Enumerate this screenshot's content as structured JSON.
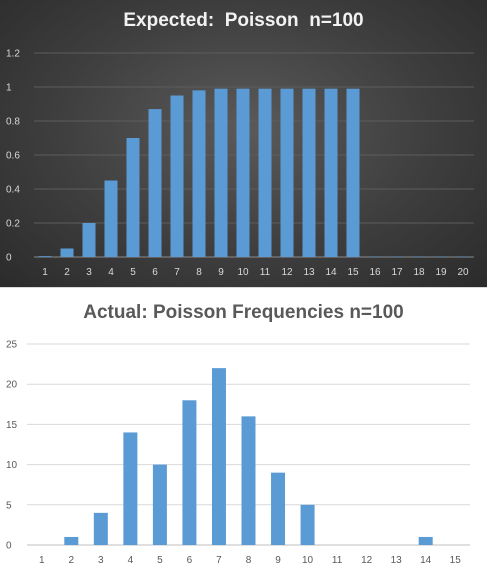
{
  "chart_data": [
    {
      "type": "bar",
      "title": "Expected:  Poisson  n=100",
      "categories": [
        "1",
        "2",
        "3",
        "4",
        "5",
        "6",
        "7",
        "8",
        "9",
        "10",
        "11",
        "12",
        "13",
        "14",
        "15",
        "16",
        "17",
        "18",
        "19",
        "20"
      ],
      "values": [
        0.005,
        0.05,
        0.2,
        0.45,
        0.7,
        0.87,
        0.95,
        0.98,
        0.99,
        0.99,
        0.99,
        0.99,
        0.99,
        0.99,
        0.99,
        0.003,
        0.003,
        0.003,
        0.003,
        0.003
      ],
      "ylim": [
        0,
        1.2
      ],
      "yticks": [
        "0",
        "0.2",
        "0.4",
        "0.6",
        "0.8",
        "1",
        "1.2"
      ],
      "grid": true,
      "colors": {
        "bar": "#5b9bd5",
        "grid": "#5d5d5d",
        "text": "#d9d9d9"
      }
    },
    {
      "type": "bar",
      "title": "Actual: Poisson Frequencies n=100",
      "categories": [
        "1",
        "2",
        "3",
        "4",
        "5",
        "6",
        "7",
        "8",
        "9",
        "10",
        "11",
        "12",
        "13",
        "14",
        "15"
      ],
      "values": [
        0,
        1,
        4,
        14,
        10,
        18,
        22,
        16,
        9,
        5,
        0,
        0,
        0,
        1,
        0
      ],
      "ylim": [
        0,
        25
      ],
      "yticks": [
        "0",
        "5",
        "10",
        "15",
        "20",
        "25"
      ],
      "grid": true,
      "colors": {
        "bar": "#5b9bd5",
        "grid": "#d9d9d9",
        "text": "#595959"
      }
    }
  ]
}
